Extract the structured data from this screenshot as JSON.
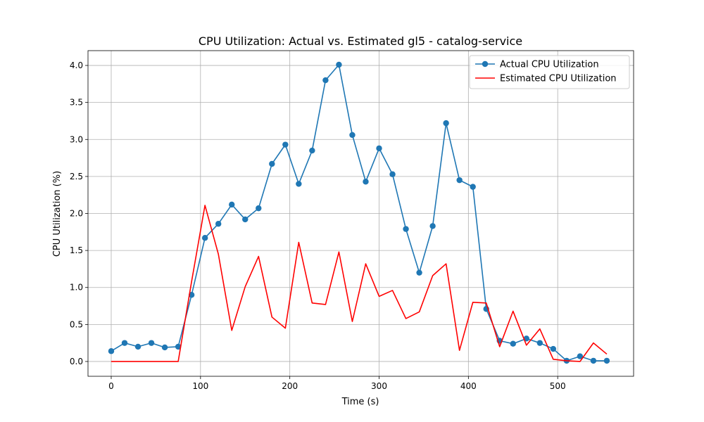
{
  "chart_data": {
    "type": "line",
    "title": "CPU Utilization: Actual vs. Estimated gl5 - catalog-service",
    "xlabel": "Time (s)",
    "ylabel": "CPU Utilization (%)",
    "xlim": [
      -26,
      585
    ],
    "ylim": [
      -0.2,
      4.2
    ],
    "xticks": [
      0,
      100,
      200,
      300,
      400,
      500
    ],
    "yticks": [
      0.0,
      0.5,
      1.0,
      1.5,
      2.0,
      2.5,
      3.0,
      3.5,
      4.0
    ],
    "xtick_labels": [
      "0",
      "100",
      "200",
      "300",
      "400",
      "500"
    ],
    "ytick_labels": [
      "0.0",
      "0.5",
      "1.0",
      "1.5",
      "2.0",
      "2.5",
      "3.0",
      "3.5",
      "4.0"
    ],
    "grid": true,
    "legend_position": "top-right",
    "x": [
      0,
      15,
      30,
      45,
      60,
      75,
      90,
      105,
      120,
      135,
      150,
      165,
      180,
      195,
      210,
      225,
      240,
      255,
      270,
      285,
      300,
      315,
      330,
      345,
      360,
      375,
      390,
      405,
      420,
      435,
      450,
      465,
      480,
      495,
      510,
      525,
      540,
      555
    ],
    "series": [
      {
        "name": "Actual CPU Utilization",
        "color": "#1f77b4",
        "marker": "circle",
        "values": [
          0.14,
          0.25,
          0.2,
          0.25,
          0.19,
          0.2,
          0.9,
          1.67,
          1.86,
          2.12,
          1.92,
          2.07,
          2.67,
          2.93,
          2.4,
          2.85,
          3.8,
          4.01,
          3.06,
          2.43,
          2.88,
          2.53,
          1.79,
          1.2,
          1.83,
          3.22,
          2.45,
          2.36,
          0.71,
          0.28,
          0.24,
          0.31,
          0.25,
          0.17,
          0.01,
          0.07,
          0.01,
          0.01
        ]
      },
      {
        "name": "Estimated CPU Utilization",
        "color": "#ff0000",
        "marker": "none",
        "values": [
          0.0,
          0.0,
          0.0,
          0.0,
          0.0,
          0.0,
          1.08,
          2.11,
          1.45,
          0.42,
          1.01,
          1.42,
          0.6,
          0.45,
          1.61,
          0.79,
          0.77,
          1.48,
          0.54,
          1.32,
          0.88,
          0.96,
          0.58,
          0.67,
          1.16,
          1.32,
          0.15,
          0.8,
          0.79,
          0.2,
          0.68,
          0.22,
          0.44,
          0.03,
          0.01,
          0.0,
          0.25,
          0.1
        ]
      }
    ]
  }
}
